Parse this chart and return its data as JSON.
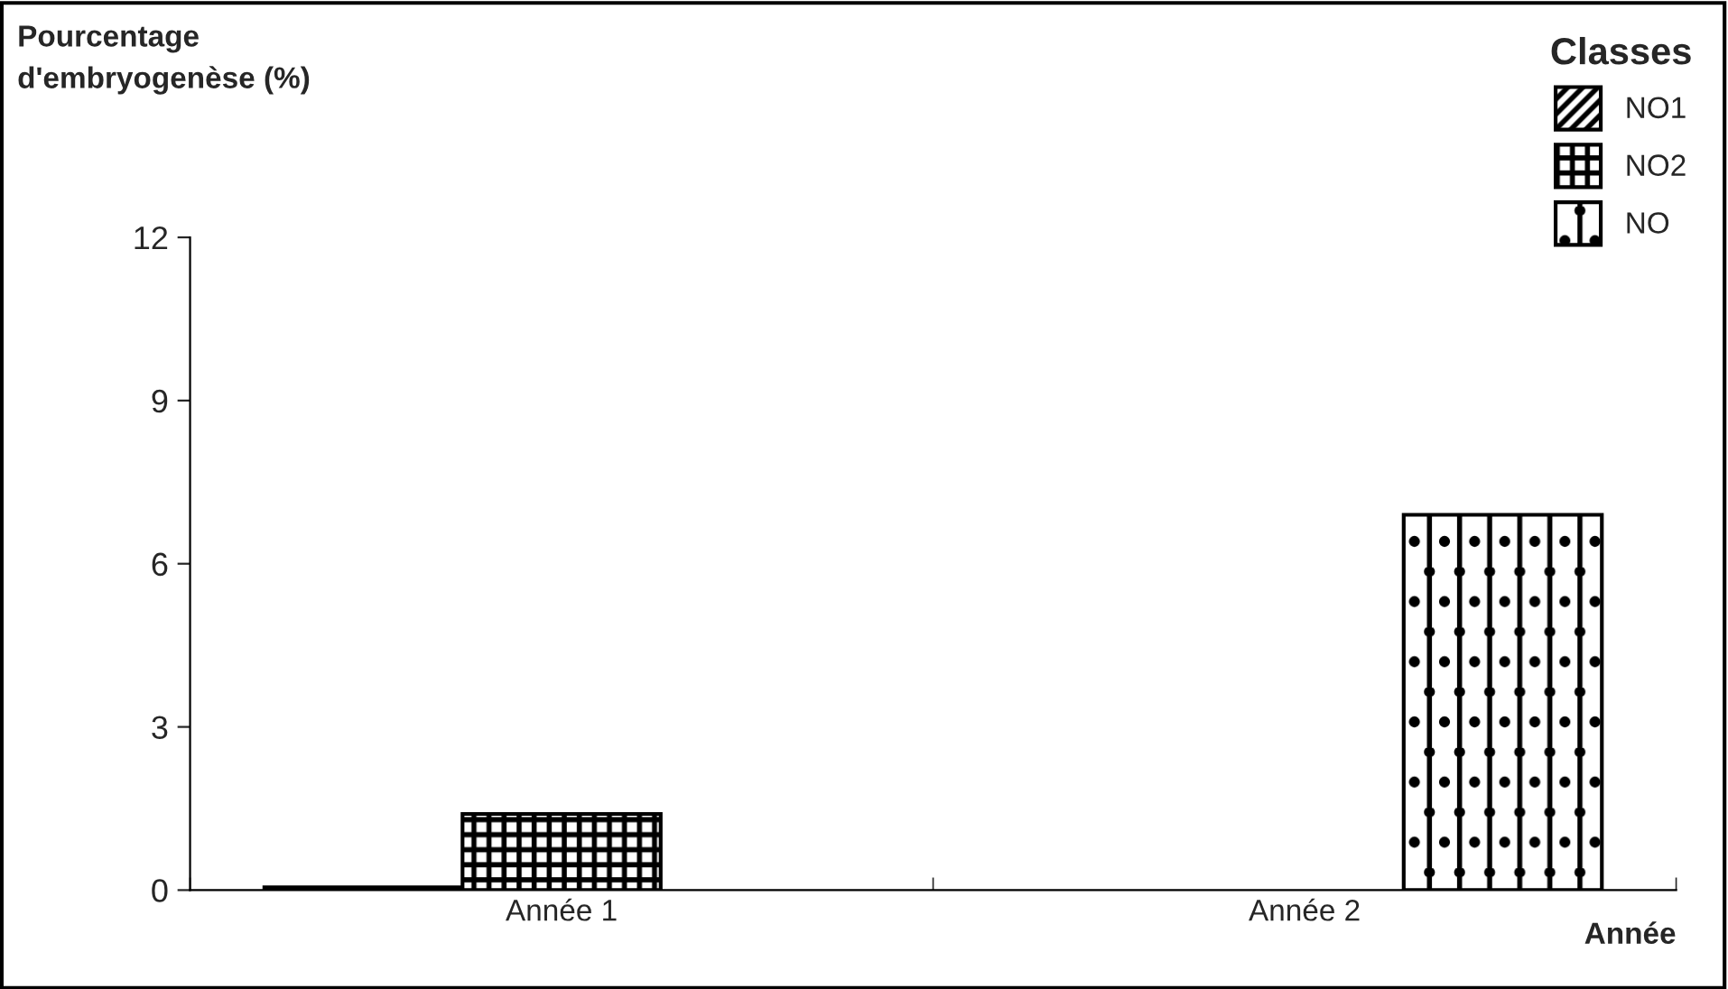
{
  "chart_data": {
    "type": "bar",
    "ylabel": "Pourcentage\nd'embryogenèse (%)",
    "xlabel": "Année",
    "legend_title": "Classes",
    "categories": [
      "Année 1",
      "Année 2"
    ],
    "series": [
      {
        "name": "NO1",
        "color": "#000000",
        "values": [
          0.05,
          null
        ]
      },
      {
        "name": "NO2",
        "color": "#000000",
        "values": [
          1.4,
          null
        ]
      },
      {
        "name": "NO",
        "color": "#000000",
        "values": [
          null,
          6.9
        ]
      }
    ],
    "ylim": [
      0,
      12
    ],
    "yticks": [
      0,
      3,
      6,
      9,
      12
    ],
    "grid": false,
    "legend": "top right"
  }
}
